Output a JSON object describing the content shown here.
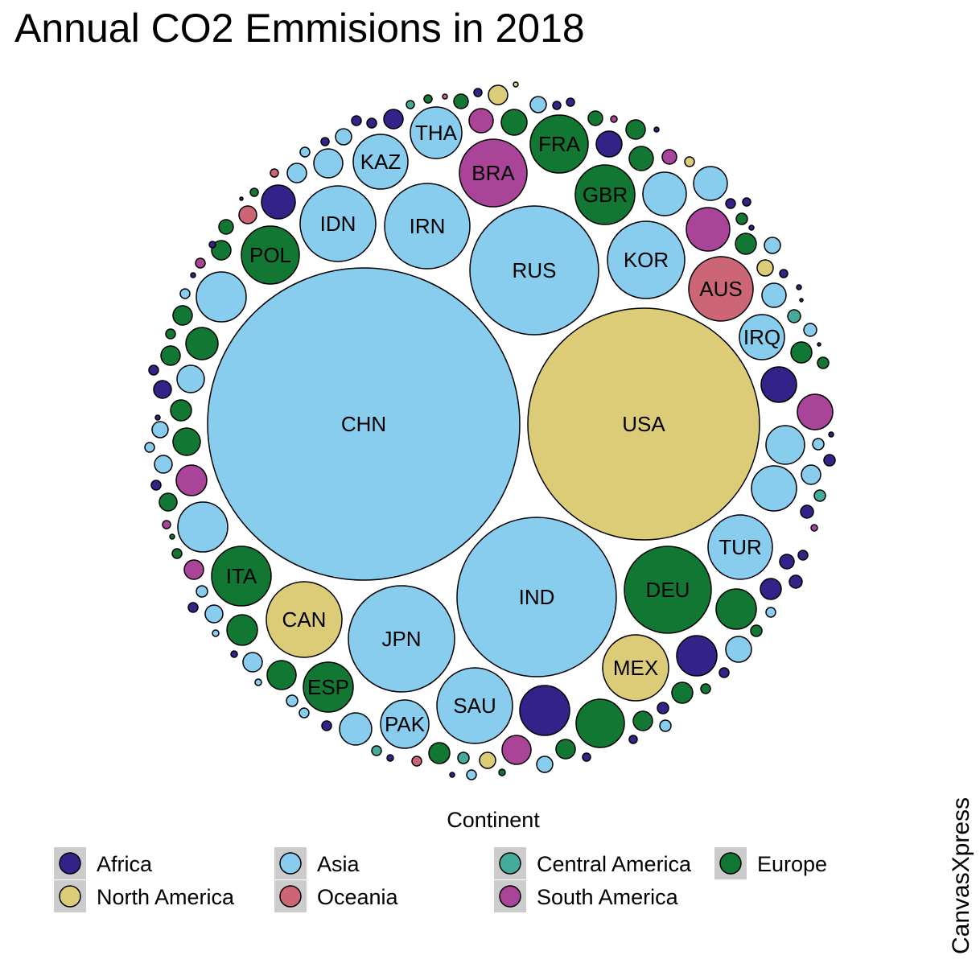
{
  "chart_data": {
    "type": "bubble-pack",
    "title": "Annual CO2 Emmisions in 2018",
    "legend": {
      "title": "Continent",
      "placement": "bottom",
      "items": [
        {
          "name": "Africa",
          "color": "#332288"
        },
        {
          "name": "Asia",
          "color": "#88CCEE"
        },
        {
          "name": "Central America",
          "color": "#44AA99"
        },
        {
          "name": "Europe",
          "color": "#117733"
        },
        {
          "name": "North America",
          "color": "#DDCC77"
        },
        {
          "name": "Oceania",
          "color": "#CC6677"
        },
        {
          "name": "South America",
          "color": "#AA4499"
        }
      ]
    },
    "watermark": "CanvasXpress",
    "labeled_bubbles": [
      {
        "label": "CHN",
        "continent": "Asia"
      },
      {
        "label": "USA",
        "continent": "North America"
      },
      {
        "label": "IND",
        "continent": "Asia"
      },
      {
        "label": "RUS",
        "continent": "Asia"
      },
      {
        "label": "JPN",
        "continent": "Asia"
      },
      {
        "label": "DEU",
        "continent": "Europe"
      },
      {
        "label": "IRN",
        "continent": "Asia"
      },
      {
        "label": "KOR",
        "continent": "Asia"
      },
      {
        "label": "SAU",
        "continent": "Asia"
      },
      {
        "label": "IDN",
        "continent": "Asia"
      },
      {
        "label": "CAN",
        "continent": "North America"
      },
      {
        "label": "MEX",
        "continent": "North America"
      },
      {
        "label": "BRA",
        "continent": "South America"
      },
      {
        "label": "AUS",
        "continent": "Oceania"
      },
      {
        "label": "TUR",
        "continent": "Asia"
      },
      {
        "label": "GBR",
        "continent": "Europe"
      },
      {
        "label": "ITA",
        "continent": "Europe"
      },
      {
        "label": "POL",
        "continent": "Europe"
      },
      {
        "label": "FRA",
        "continent": "Europe"
      },
      {
        "label": "KAZ",
        "continent": "Asia"
      },
      {
        "label": "THA",
        "continent": "Asia"
      },
      {
        "label": "ESP",
        "continent": "Europe"
      },
      {
        "label": "PAK",
        "continent": "Asia"
      },
      {
        "label": "IRQ",
        "continent": "Asia"
      }
    ]
  }
}
